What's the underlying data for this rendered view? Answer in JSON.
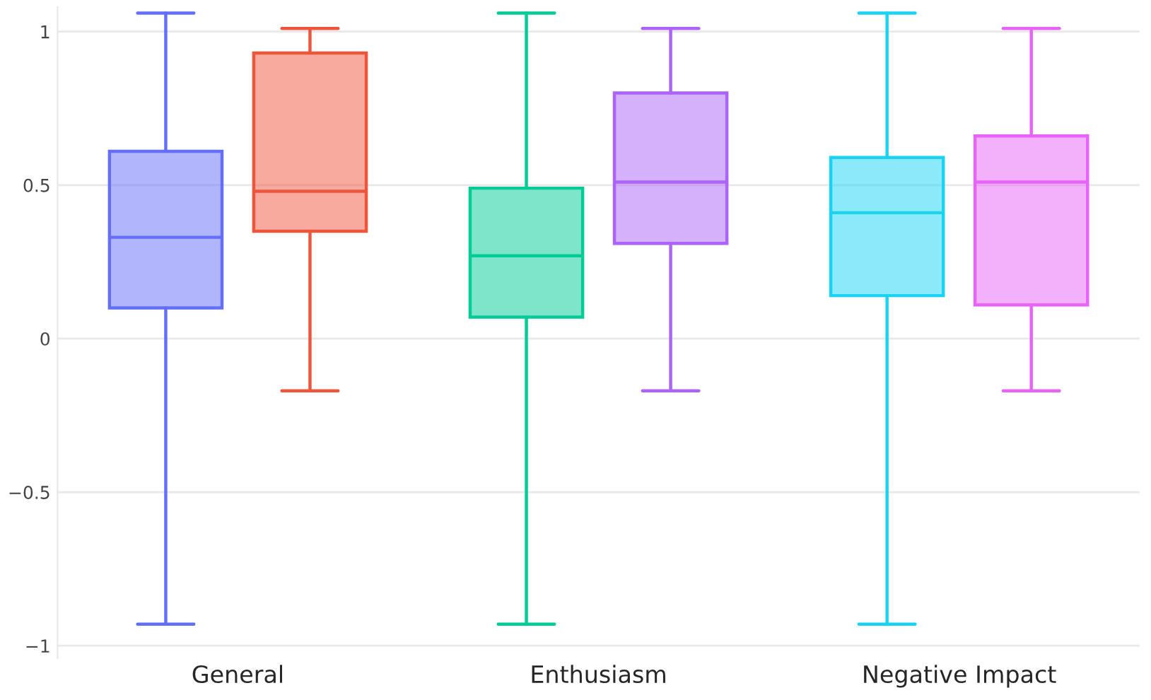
{
  "chart_data": {
    "type": "box",
    "categories": [
      "General",
      "Enthusiasm",
      "Negative Impact"
    ],
    "series": [
      {
        "colors": [
          "#636efa",
          "#00cc96",
          "#19d3f3"
        ],
        "boxes": [
          {
            "low": -0.93,
            "q1": 0.1,
            "median": 0.33,
            "q3": 0.61,
            "high": 1.06
          },
          {
            "low": -0.93,
            "q1": 0.07,
            "median": 0.27,
            "q3": 0.49,
            "high": 1.06
          },
          {
            "low": -0.93,
            "q1": 0.14,
            "median": 0.41,
            "q3": 0.59,
            "high": 1.06
          }
        ]
      },
      {
        "colors": [
          "#ef553b",
          "#ab63fa",
          "#e763fa"
        ],
        "boxes": [
          {
            "low": -0.17,
            "q1": 0.35,
            "median": 0.48,
            "q3": 0.93,
            "high": 1.01
          },
          {
            "low": -0.17,
            "q1": 0.31,
            "median": 0.51,
            "q3": 0.8,
            "high": 1.01
          },
          {
            "low": -0.17,
            "q1": 0.11,
            "median": 0.51,
            "q3": 0.66,
            "high": 1.01
          }
        ]
      }
    ],
    "ylim": [
      -1.04,
      1.08
    ],
    "yticks": [
      {
        "value": -1,
        "label": "−1"
      },
      {
        "value": -0.5,
        "label": "−0.5"
      },
      0,
      0.5,
      1
    ],
    "grid": "y"
  }
}
